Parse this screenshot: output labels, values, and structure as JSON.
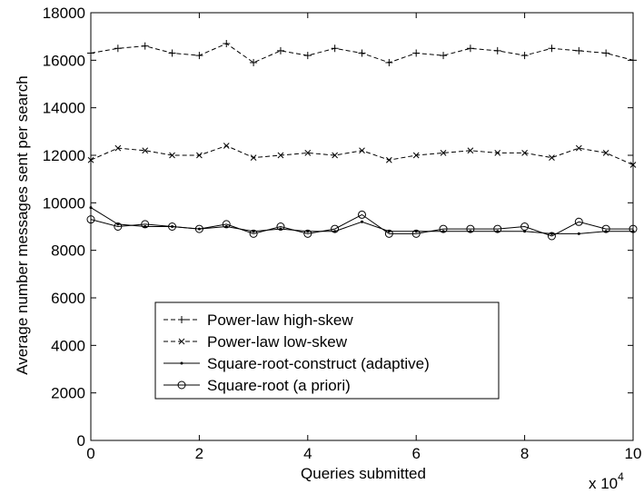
{
  "chart_data": {
    "type": "line",
    "xlabel": "Queries submitted",
    "ylabel": "Average number messages sent per search",
    "x_multiplier_label": "x 10",
    "x_multiplier_exponent": "4",
    "xlim": [
      0,
      100000
    ],
    "ylim": [
      0,
      18000
    ],
    "xtick_values": [
      0,
      20000,
      40000,
      60000,
      80000,
      100000
    ],
    "xtick_labels": [
      "0",
      "2",
      "4",
      "6",
      "8",
      "10"
    ],
    "ytick_values": [
      0,
      2000,
      4000,
      6000,
      8000,
      10000,
      12000,
      14000,
      16000,
      18000
    ],
    "ytick_labels": [
      "0",
      "2000",
      "4000",
      "6000",
      "8000",
      "10000",
      "12000",
      "14000",
      "16000",
      "18000"
    ],
    "grid": false,
    "legend_position": "lower-left",
    "x": [
      0,
      5000,
      10000,
      15000,
      20000,
      25000,
      30000,
      35000,
      40000,
      45000,
      50000,
      55000,
      60000,
      65000,
      70000,
      75000,
      80000,
      85000,
      90000,
      95000,
      100000
    ],
    "series": [
      {
        "name": "Power-law high-skew",
        "style": "dash-plus",
        "values": [
          16300,
          16500,
          16600,
          16300,
          16200,
          16700,
          15900,
          16400,
          16200,
          16500,
          16300,
          15900,
          16300,
          16200,
          16500,
          16400,
          16200,
          16500,
          16400,
          16300,
          16000
        ]
      },
      {
        "name": "Power-law low-skew",
        "style": "dash-x",
        "values": [
          11800,
          12300,
          12200,
          12000,
          12000,
          12400,
          11900,
          12000,
          12100,
          12000,
          12200,
          11800,
          12000,
          12100,
          12200,
          12100,
          12100,
          11900,
          12300,
          12100,
          11600
        ]
      },
      {
        "name": "Square-root-construct (adaptive)",
        "style": "solid-dot",
        "values": [
          9800,
          9100,
          9000,
          9000,
          8900,
          9000,
          8800,
          8900,
          8800,
          8800,
          9200,
          8800,
          8800,
          8800,
          8800,
          8800,
          8800,
          8700,
          8700,
          8800,
          8800
        ]
      },
      {
        "name": "Square-root (a priori)",
        "style": "solid-circle",
        "values": [
          9300,
          9000,
          9100,
          9000,
          8900,
          9100,
          8700,
          9000,
          8700,
          8900,
          9500,
          8700,
          8700,
          8900,
          8900,
          8900,
          9000,
          8600,
          9200,
          8900,
          8900
        ]
      }
    ]
  }
}
